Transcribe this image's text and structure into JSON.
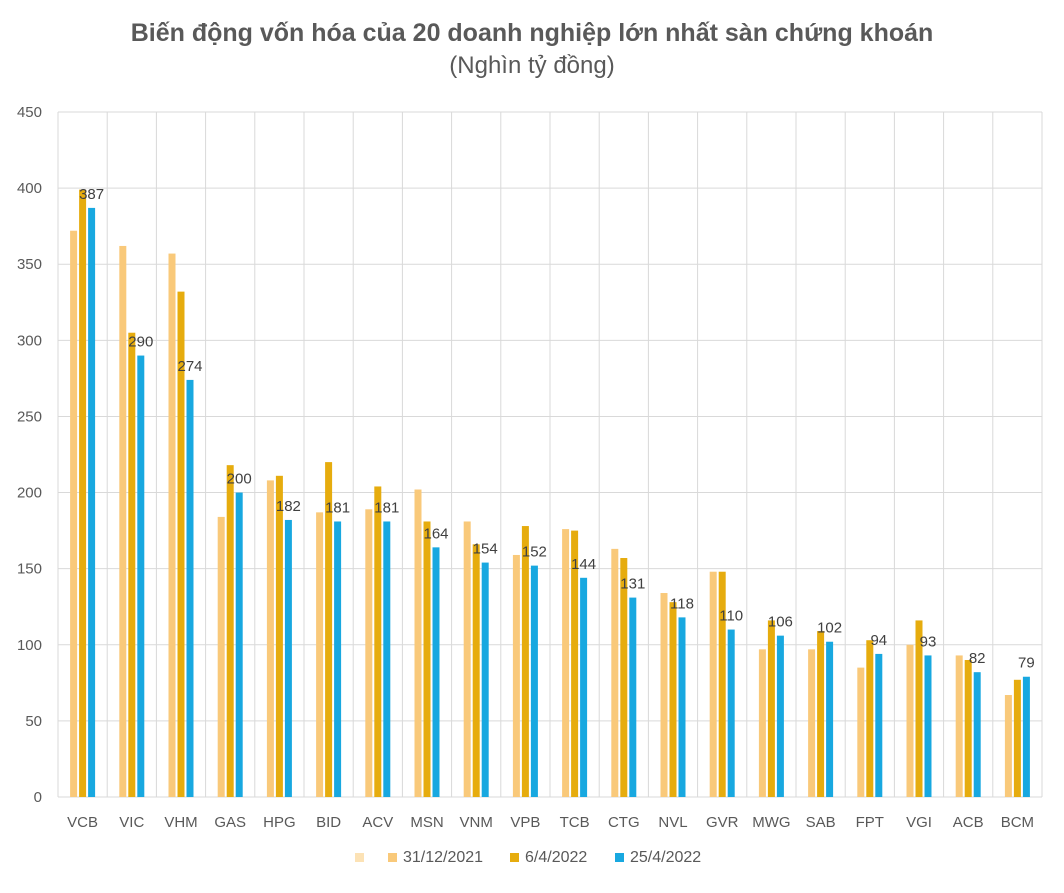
{
  "chart_data": {
    "type": "bar",
    "title": "Biến động vốn hóa của 20 doanh nghiệp lớn nhất sàn chứng khoán",
    "subtitle": "(Nghìn tỷ đồng)",
    "categories": [
      "VCB",
      "VIC",
      "VHM",
      "GAS",
      "HPG",
      "BID",
      "ACV",
      "MSN",
      "VNM",
      "VPB",
      "TCB",
      "CTG",
      "NVL",
      "GVR",
      "MWG",
      "SAB",
      "FPT",
      "VGI",
      "ACB",
      "BCM"
    ],
    "ylim": [
      0,
      450
    ],
    "yticks": [
      0,
      50,
      100,
      150,
      200,
      250,
      300,
      350,
      400,
      450
    ],
    "grid": true,
    "legend_position": "bottom",
    "legend_leading_entry": "",
    "series": [
      {
        "name": "31/12/2021",
        "color": "#F9C97A",
        "values": [
          372,
          362,
          357,
          184,
          208,
          187,
          189,
          202,
          181,
          159,
          176,
          163,
          134,
          148,
          97,
          97,
          85,
          100,
          93,
          67
        ]
      },
      {
        "name": "6/4/2022",
        "color": "#E6AC0E",
        "values": [
          399,
          305,
          332,
          218,
          211,
          220,
          204,
          181,
          166,
          178,
          175,
          157,
          128,
          148,
          116,
          109,
          103,
          116,
          90,
          77
        ]
      },
      {
        "name": "25/4/2022",
        "color": "#18A8E0",
        "values": [
          387,
          290,
          274,
          200,
          182,
          181,
          181,
          164,
          154,
          152,
          144,
          131,
          118,
          110,
          106,
          102,
          94,
          93,
          82,
          79
        ]
      }
    ],
    "data_labels": [
      "387",
      "290",
      "274",
      "200",
      "182",
      "181",
      "181",
      "164",
      "154",
      "152",
      "144",
      "131",
      "118",
      "110",
      "106",
      "102",
      "94",
      "93",
      "82",
      "79"
    ]
  }
}
